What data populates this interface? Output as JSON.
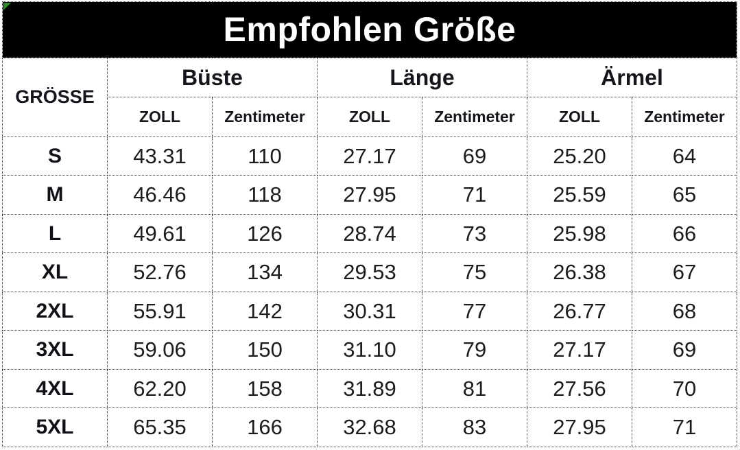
{
  "title": "Empfohlen Größe",
  "colors": {
    "banner_bg": "#000000",
    "banner_text": "#ffffff",
    "corner_flag_green": "#2d8a2d",
    "border": "#3c3c3c",
    "text": "#15151c"
  },
  "table": {
    "size_header": "GRÖSSE",
    "groups": [
      {
        "label": "Büste",
        "sub": [
          "ZOLL",
          "Zentimeter"
        ]
      },
      {
        "label": "Länge",
        "sub": [
          "ZOLL",
          "Zentimeter"
        ]
      },
      {
        "label": "Ärmel",
        "sub": [
          "ZOLL",
          "Zentimeter"
        ]
      }
    ],
    "rows": [
      {
        "size": "S",
        "values": [
          "43.31",
          "110",
          "27.17",
          "69",
          "25.20",
          "64"
        ]
      },
      {
        "size": "M",
        "values": [
          "46.46",
          "118",
          "27.95",
          "71",
          "25.59",
          "65"
        ]
      },
      {
        "size": "L",
        "values": [
          "49.61",
          "126",
          "28.74",
          "73",
          "25.98",
          "66"
        ]
      },
      {
        "size": "XL",
        "values": [
          "52.76",
          "134",
          "29.53",
          "75",
          "26.38",
          "67"
        ]
      },
      {
        "size": "2XL",
        "values": [
          "55.91",
          "142",
          "30.31",
          "77",
          "26.77",
          "68"
        ]
      },
      {
        "size": "3XL",
        "values": [
          "59.06",
          "150",
          "31.10",
          "79",
          "27.17",
          "69"
        ]
      },
      {
        "size": "4XL",
        "values": [
          "62.20",
          "158",
          "31.89",
          "81",
          "27.56",
          "70"
        ]
      },
      {
        "size": "5XL",
        "values": [
          "65.35",
          "166",
          "32.68",
          "83",
          "27.95",
          "71"
        ]
      }
    ]
  },
  "chart_data": {
    "type": "table",
    "title": "Empfohlen Größe",
    "columns": [
      "GRÖSSE",
      "Büste ZOLL",
      "Büste Zentimeter",
      "Länge ZOLL",
      "Länge Zentimeter",
      "Ärmel ZOLL",
      "Ärmel Zentimeter"
    ],
    "rows": [
      [
        "S",
        43.31,
        110,
        27.17,
        69,
        25.2,
        64
      ],
      [
        "M",
        46.46,
        118,
        27.95,
        71,
        25.59,
        65
      ],
      [
        "L",
        49.61,
        126,
        28.74,
        73,
        25.98,
        66
      ],
      [
        "XL",
        52.76,
        134,
        29.53,
        75,
        26.38,
        67
      ],
      [
        "2XL",
        55.91,
        142,
        30.31,
        77,
        26.77,
        68
      ],
      [
        "3XL",
        59.06,
        150,
        31.1,
        79,
        27.17,
        69
      ],
      [
        "4XL",
        62.2,
        158,
        31.89,
        81,
        27.56,
        70
      ],
      [
        "5XL",
        65.35,
        166,
        32.68,
        83,
        27.95,
        71
      ]
    ]
  }
}
